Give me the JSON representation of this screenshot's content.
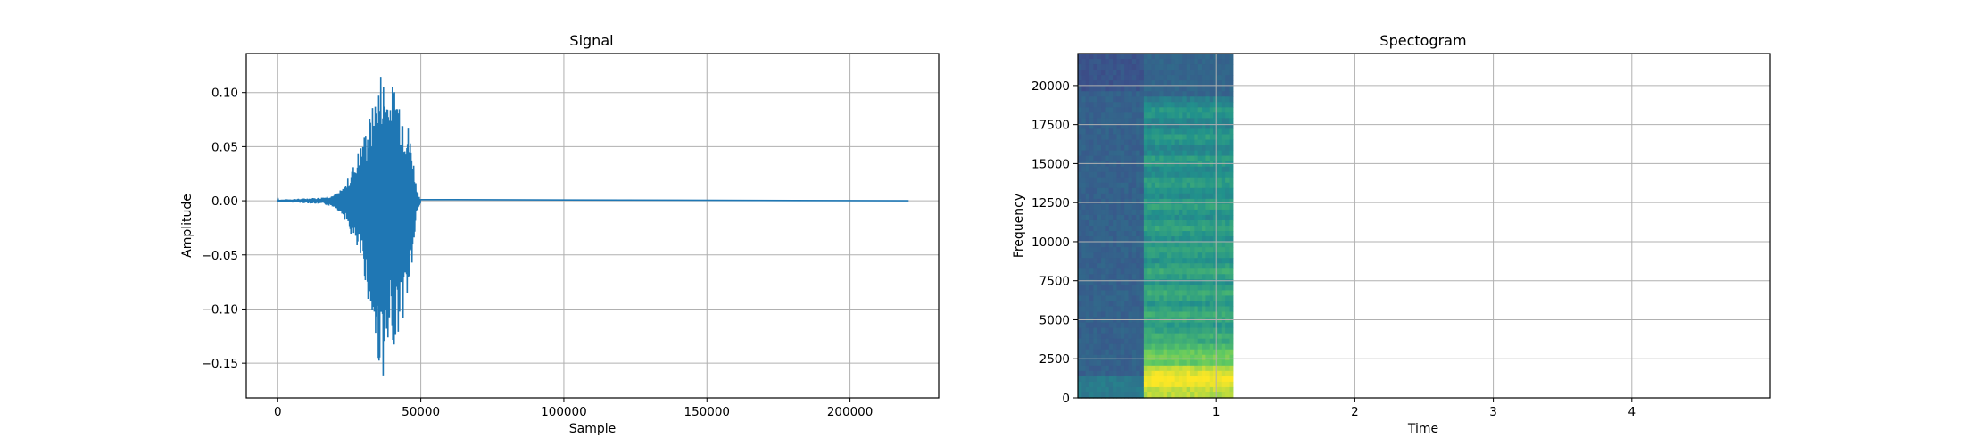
{
  "chart_data": [
    {
      "type": "line",
      "title": "Signal",
      "xlabel": "Sample",
      "ylabel": "Amplitude",
      "xlim": [
        -11000,
        231000
      ],
      "ylim": [
        -0.182,
        0.136
      ],
      "xticks": [
        0,
        50000,
        100000,
        150000,
        200000
      ],
      "xtick_labels": [
        "0",
        "50000",
        "100000",
        "150000",
        "200000"
      ],
      "yticks": [
        -0.15,
        -0.1,
        -0.05,
        0.0,
        0.05,
        0.1
      ],
      "ytick_labels": [
        "−0.15",
        "−0.10",
        "−0.05",
        "0.00",
        "0.05",
        "0.10"
      ],
      "grid": true,
      "color": "#1f77b4",
      "envelope": {
        "x": [
          0,
          8000,
          15000,
          20000,
          23000,
          26000,
          28000,
          30000,
          32000,
          34000,
          36000,
          37500,
          39000,
          41000,
          43000,
          45000,
          47000,
          48500,
          50000,
          220500
        ],
        "upper": [
          0.001,
          0.002,
          0.003,
          0.006,
          0.012,
          0.03,
          0.045,
          0.06,
          0.078,
          0.095,
          0.122,
          0.115,
          0.105,
          0.11,
          0.1,
          0.08,
          0.05,
          0.012,
          0.001,
          0.001
        ],
        "lower": [
          -0.001,
          -0.002,
          -0.003,
          -0.006,
          -0.015,
          -0.035,
          -0.05,
          -0.065,
          -0.1,
          -0.14,
          -0.16,
          -0.166,
          -0.15,
          -0.13,
          -0.12,
          -0.1,
          -0.06,
          -0.015,
          -0.001,
          -0.001
        ]
      }
    },
    {
      "type": "heatmap",
      "title": "Spectogram",
      "xlabel": "Time",
      "ylabel": "Frequency",
      "xlim": [
        0,
        5
      ],
      "ylim": [
        0,
        22050
      ],
      "data_xmax": 1.12,
      "signal_start": 0.48,
      "xticks": [
        1,
        2,
        3,
        4
      ],
      "xtick_labels": [
        "1",
        "2",
        "3",
        "4"
      ],
      "yticks": [
        0,
        2500,
        5000,
        7500,
        10000,
        12500,
        15000,
        17500,
        20000
      ],
      "ytick_labels": [
        "0",
        "2500",
        "5000",
        "7500",
        "10000",
        "12500",
        "15000",
        "17500",
        "20000"
      ],
      "grid": true,
      "colormap": [
        "#440154",
        "#3b528b",
        "#21918c",
        "#5ec962",
        "#fde725"
      ],
      "background_color": "#2c6e8e",
      "harmonic_freqs": [
        1200,
        2600,
        3900,
        5300,
        6700,
        8100,
        9500,
        10900,
        12300,
        13800,
        15200,
        16700,
        18300
      ]
    }
  ]
}
